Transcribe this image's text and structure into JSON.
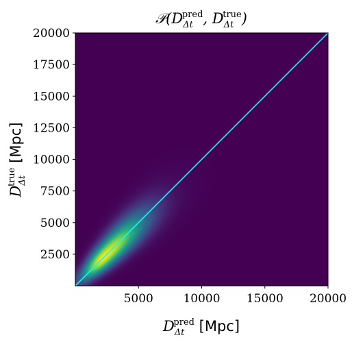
{
  "chart_data": {
    "type": "heatmap",
    "title": "𝒫(D^pred_Δt, D^true_Δt)",
    "xlabel": "D^pred_Δt [Mpc]",
    "ylabel": "D^true_Δt [Mpc]",
    "xlim": [
      0,
      20000
    ],
    "ylim": [
      0,
      20000
    ],
    "xticks": [
      5000,
      10000,
      15000,
      20000
    ],
    "yticks": [
      2500,
      5000,
      7500,
      10000,
      12500,
      15000,
      17500,
      20000
    ],
    "colormap": "viridis",
    "background_color": "#440154",
    "density_peak": {
      "x": 2200,
      "y": 2200
    },
    "density_spread_along_diagonal": 1600,
    "density_spread_across_diagonal": 450,
    "reference_line": {
      "color": "#00ffff",
      "points": [
        [
          0,
          0
        ],
        [
          20000,
          20000
        ]
      ]
    }
  }
}
